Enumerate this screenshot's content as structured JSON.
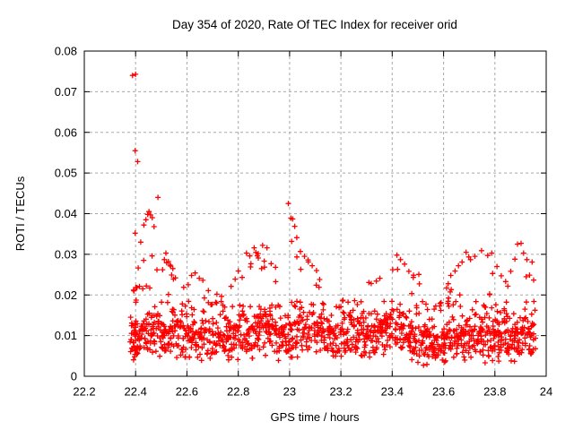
{
  "window": {
    "background": "#ffffff"
  },
  "chart_data": {
    "type": "scatter",
    "title": "Day 354 of 2020, Rate Of TEC Index for receiver orid",
    "xlabel": "GPS time / hours",
    "ylabel": "ROTI / TECUs",
    "xlim": [
      22.2,
      24
    ],
    "ylim": [
      0,
      0.08
    ],
    "grid": true,
    "legend": "none",
    "marker": {
      "shape": "plus",
      "color": "#ff0000",
      "size": 7
    },
    "axis_color": "#000000",
    "grid_color": "#a8a8a8",
    "xticks": {
      "values": [
        22.2,
        22.4,
        22.6,
        22.8,
        23,
        23.2,
        23.4,
        23.6,
        23.8,
        24
      ],
      "labels": [
        "22.2",
        "22.4",
        "22.6",
        "22.8",
        "23",
        "23.2",
        "23.4",
        "23.6",
        "23.8",
        "24"
      ]
    },
    "yticks": {
      "values": [
        0,
        0.01,
        0.02,
        0.03,
        0.04,
        0.05,
        0.06,
        0.07,
        0.08
      ],
      "labels": [
        "0",
        "0.01",
        "0.02",
        "0.03",
        "0.04",
        "0.05",
        "0.06",
        "0.07",
        "0.08"
      ]
    },
    "series_name": "ROTI",
    "points": [
      [
        22.388,
        0.074
      ],
      [
        22.4,
        0.0743
      ],
      [
        22.398,
        0.0555
      ],
      [
        22.408,
        0.0528
      ],
      [
        22.398,
        0.0352
      ],
      [
        22.42,
        0.033
      ],
      [
        22.432,
        0.0372
      ],
      [
        22.44,
        0.0385
      ],
      [
        22.447,
        0.0398
      ],
      [
        22.452,
        0.0405
      ],
      [
        22.458,
        0.0397
      ],
      [
        22.465,
        0.039
      ],
      [
        22.472,
        0.0368
      ],
      [
        22.487,
        0.044
      ],
      [
        22.392,
        0.0212
      ],
      [
        22.405,
        0.0218
      ],
      [
        22.415,
        0.0221
      ],
      [
        22.428,
        0.0215
      ],
      [
        22.442,
        0.0222
      ],
      [
        22.455,
        0.0217
      ],
      [
        22.505,
        0.0262
      ],
      [
        22.512,
        0.0287
      ],
      [
        22.518,
        0.0303
      ],
      [
        22.528,
        0.0282
      ],
      [
        22.545,
        0.0265
      ],
      [
        22.555,
        0.0242
      ],
      [
        22.605,
        0.0225
      ],
      [
        22.618,
        0.0248
      ],
      [
        22.632,
        0.0254
      ],
      [
        22.648,
        0.0241
      ],
      [
        22.662,
        0.0236
      ],
      [
        22.772,
        0.0221
      ],
      [
        22.788,
        0.0239
      ],
      [
        22.8,
        0.0259
      ],
      [
        22.815,
        0.0243
      ],
      [
        22.832,
        0.0303
      ],
      [
        22.845,
        0.0296
      ],
      [
        22.862,
        0.0316
      ],
      [
        22.878,
        0.0291
      ],
      [
        22.895,
        0.0322
      ],
      [
        22.912,
        0.0316
      ],
      [
        22.928,
        0.0277
      ],
      [
        22.945,
        0.0268
      ],
      [
        22.995,
        0.0425
      ],
      [
        23.005,
        0.0389
      ],
      [
        23.012,
        0.0387
      ],
      [
        23.02,
        0.0369
      ],
      [
        23.028,
        0.0341
      ],
      [
        23.042,
        0.0307
      ],
      [
        23.058,
        0.0295
      ],
      [
        23.072,
        0.0286
      ],
      [
        23.088,
        0.0272
      ],
      [
        23.105,
        0.026
      ],
      [
        23.318,
        0.0228
      ],
      [
        23.338,
        0.0234
      ],
      [
        23.352,
        0.0241
      ],
      [
        23.402,
        0.0262
      ],
      [
        23.418,
        0.0298
      ],
      [
        23.432,
        0.0287
      ],
      [
        23.448,
        0.0276
      ],
      [
        23.465,
        0.0258
      ],
      [
        23.482,
        0.0243
      ],
      [
        23.522,
        0.0027
      ],
      [
        23.535,
        0.0029
      ],
      [
        23.608,
        0.0038
      ],
      [
        23.612,
        0.0217
      ],
      [
        23.628,
        0.0248
      ],
      [
        23.645,
        0.0259
      ],
      [
        23.658,
        0.0272
      ],
      [
        23.672,
        0.0281
      ],
      [
        23.688,
        0.0305
      ],
      [
        23.705,
        0.0287
      ],
      [
        23.722,
        0.0295
      ],
      [
        23.748,
        0.0309
      ],
      [
        23.762,
        0.0033
      ],
      [
        23.772,
        0.0297
      ],
      [
        23.788,
        0.0303
      ],
      [
        23.808,
        0.027
      ],
      [
        23.825,
        0.0247
      ],
      [
        23.842,
        0.0233
      ],
      [
        23.862,
        0.0258
      ],
      [
        23.878,
        0.0288
      ],
      [
        23.888,
        0.0325
      ],
      [
        23.902,
        0.0327
      ],
      [
        23.912,
        0.0303
      ],
      [
        23.925,
        0.0287
      ],
      [
        23.945,
        0.0281
      ]
    ],
    "band": {
      "seed": 354,
      "x_start": 22.382,
      "x_end": 23.955,
      "x_step": 0.0085,
      "pts_min": 6,
      "pts_max": 9,
      "profile_x": [
        22.382,
        22.42,
        22.45,
        22.5,
        22.55,
        22.6,
        22.65,
        22.7,
        22.75,
        22.8,
        22.85,
        22.9,
        22.95,
        23.0,
        23.05,
        23.1,
        23.15,
        23.2,
        23.25,
        23.3,
        23.35,
        23.4,
        23.44,
        23.47,
        23.5,
        23.55,
        23.6,
        23.65,
        23.7,
        23.75,
        23.8,
        23.85,
        23.88,
        23.91,
        23.955
      ],
      "typ": [
        0.008,
        0.009,
        0.0095,
        0.0095,
        0.01,
        0.009,
        0.0085,
        0.0085,
        0.009,
        0.0095,
        0.01,
        0.0095,
        0.009,
        0.0095,
        0.01,
        0.0095,
        0.009,
        0.0095,
        0.0095,
        0.009,
        0.0095,
        0.01,
        0.0095,
        0.009,
        0.0075,
        0.0078,
        0.0082,
        0.0085,
        0.009,
        0.0095,
        0.009,
        0.0085,
        0.0085,
        0.009,
        0.008
      ],
      "max": [
        0.024,
        0.028,
        0.04,
        0.03,
        0.027,
        0.026,
        0.025,
        0.02,
        0.022,
        0.026,
        0.03,
        0.033,
        0.027,
        0.042,
        0.03,
        0.026,
        0.019,
        0.019,
        0.018,
        0.023,
        0.024,
        0.028,
        0.03,
        0.027,
        0.026,
        0.017,
        0.022,
        0.027,
        0.03,
        0.031,
        0.027,
        0.022,
        0.031,
        0.032,
        0.027
      ],
      "burst": {
        "x": 22.398,
        "n": 14,
        "y_lo": 0.0045,
        "y_hi": 0.0234
      }
    }
  }
}
